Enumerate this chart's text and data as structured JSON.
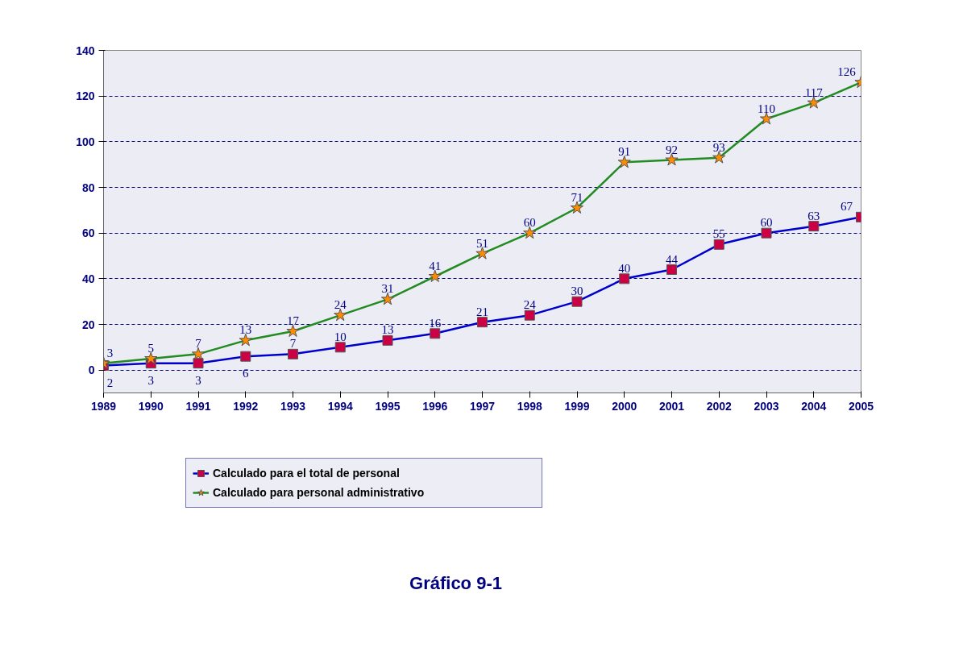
{
  "chart_data": {
    "type": "line",
    "title": "Gráfico 9-1",
    "x": [
      1989,
      1990,
      1991,
      1992,
      1993,
      1994,
      1995,
      1996,
      1997,
      1998,
      1999,
      2000,
      2001,
      2002,
      2003,
      2004,
      2005
    ],
    "series": [
      {
        "name": "Calculado para el total de personal",
        "color": "#0000cc",
        "colors": [
          "#cc0044",
          "#cc0044",
          "#cc0044",
          "#cc0044",
          "#cc0044",
          "#cc0044",
          "#cc0044",
          "#cc0044",
          "#cc0044",
          "#cc0044",
          "#cc0044",
          "#cc0044",
          "#cc0044",
          "#cc0044",
          "#cc0044",
          "#cc0044",
          "#cc0044"
        ],
        "marker": "square",
        "values": [
          2,
          3,
          3,
          6,
          7,
          10,
          13,
          16,
          21,
          24,
          30,
          40,
          44,
          55,
          60,
          63,
          67
        ]
      },
      {
        "name": "Calculado para personal administrativo",
        "color": "#228b22",
        "colors": [
          "#ff8c00",
          "#ff8c00",
          "#ff8c00",
          "#ff8c00",
          "#ff8c00",
          "#ff8c00",
          "#ff8c00",
          "#ff8c00",
          "#ff8c00",
          "#ff8c00",
          "#ff8c00",
          "#ff8c00",
          "#ff8c00",
          "#ff8c00",
          "#ff8c00",
          "#ff8c00",
          "#ff8c00"
        ],
        "marker": "star",
        "values": [
          3,
          5,
          7,
          13,
          17,
          24,
          31,
          41,
          51,
          60,
          71,
          91,
          92,
          93,
          110,
          117,
          126
        ]
      }
    ],
    "xlim": [
      1989,
      2005
    ],
    "xticks": [
      1989,
      1990,
      1991,
      1992,
      1993,
      1994,
      1995,
      1996,
      1997,
      1998,
      1999,
      2000,
      2001,
      2002,
      2003,
      2004,
      2005
    ],
    "ylim": [
      -10,
      140
    ],
    "yticks": [
      0,
      20,
      40,
      60,
      80,
      100,
      120,
      140
    ],
    "grid": "y",
    "legend": "bottom",
    "data_labels": true,
    "line_style": "solid"
  }
}
